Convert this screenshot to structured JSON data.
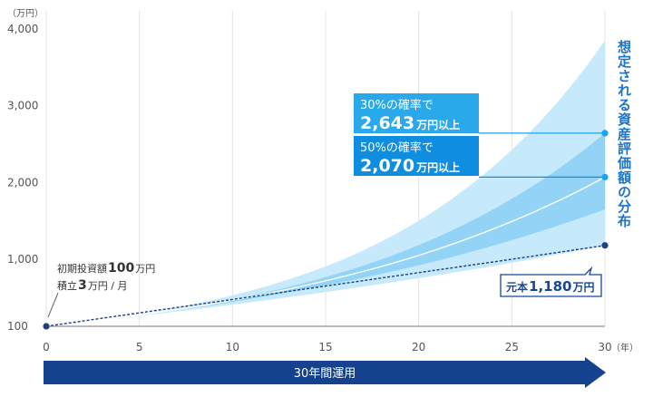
{
  "chart_data": {
    "type": "area",
    "y_unit": "（万円）",
    "x_unit": "（年）",
    "y_ticks": [
      {
        "value": 100,
        "label": "100"
      },
      {
        "value": 1000,
        "label": "1,000"
      },
      {
        "value": 2000,
        "label": "2,000"
      },
      {
        "value": 3000,
        "label": "3,000"
      },
      {
        "value": 4000,
        "label": "4,000"
      }
    ],
    "x_ticks": [
      {
        "value": 0,
        "label": "0"
      },
      {
        "value": 5,
        "label": "5"
      },
      {
        "value": 10,
        "label": "10"
      },
      {
        "value": 15,
        "label": "15"
      },
      {
        "value": 20,
        "label": "20"
      },
      {
        "value": 25,
        "label": "25"
      },
      {
        "value": 30,
        "label": "30"
      }
    ],
    "xlim": [
      0,
      30
    ],
    "ylim": [
      0,
      4000
    ],
    "start_value": 100,
    "end_values": {
      "outer_upper": 3850,
      "inner_upper": 2643,
      "median": 2070,
      "inner_lower": 1650,
      "outer_lower": 1180,
      "principal": 1180
    },
    "annotations": {
      "p30": {
        "line1": "30%の確率で",
        "value": "2,643",
        "unit": "万円以上",
        "y": 2643
      },
      "p50": {
        "line1": "50%の確率で",
        "value": "2,070",
        "unit": "万円以上",
        "y": 2070
      },
      "principal": {
        "prefix": "元本",
        "value": "1,180",
        "unit": "万円",
        "y": 1180
      },
      "initial": {
        "line1_prefix": "初期投資額",
        "line1_value": "100",
        "line1_unit": "万円",
        "line2_prefix": "積立",
        "line2_value": "3",
        "line2_unit": "万円 / 月"
      }
    },
    "vertical_title": "想定される資産評価額の分布",
    "period_label": "30年間運用",
    "colors": {
      "outer_band": "#c6e9fb",
      "inner_band": "#93d4f6",
      "median_line": "#ffffff",
      "principal_line": "#1c3f86",
      "box_30": "#29a8ea",
      "box_50": "#0e8de1",
      "arrow": "#15428f",
      "dot_cyan": "#1aa3e8",
      "dot_navy": "#1c3f86",
      "vertical_title": "#1b74c9"
    }
  }
}
